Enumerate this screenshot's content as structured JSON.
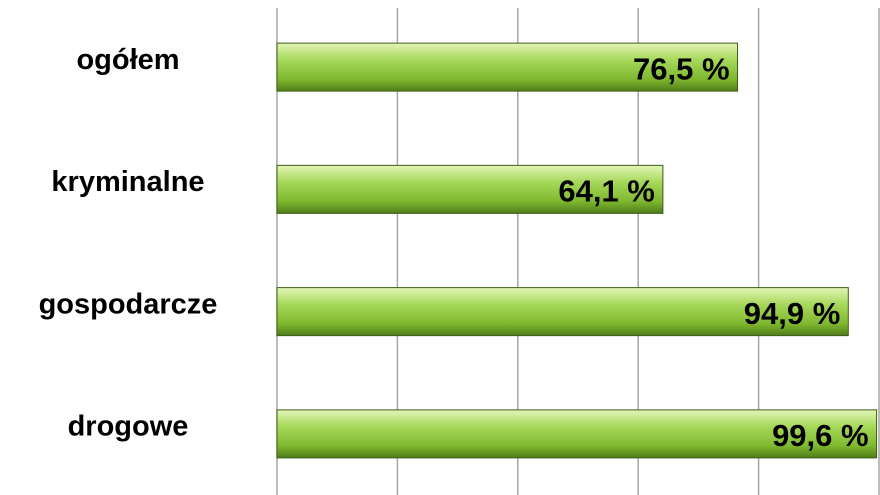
{
  "chart_data": {
    "type": "hbar",
    "categories": [
      "ogółem",
      "kryminalne",
      "gospodarcze",
      "drogowe"
    ],
    "values": [
      76.5,
      64.1,
      94.9,
      99.6
    ],
    "value_labels": [
      "76,5 %",
      "64,1 %",
      "94,9 %",
      "99,6 %"
    ],
    "xlim": [
      0,
      100
    ],
    "xticks": [
      0,
      20,
      40,
      60,
      80,
      100
    ],
    "grid": true,
    "color": "#8cc63f"
  }
}
